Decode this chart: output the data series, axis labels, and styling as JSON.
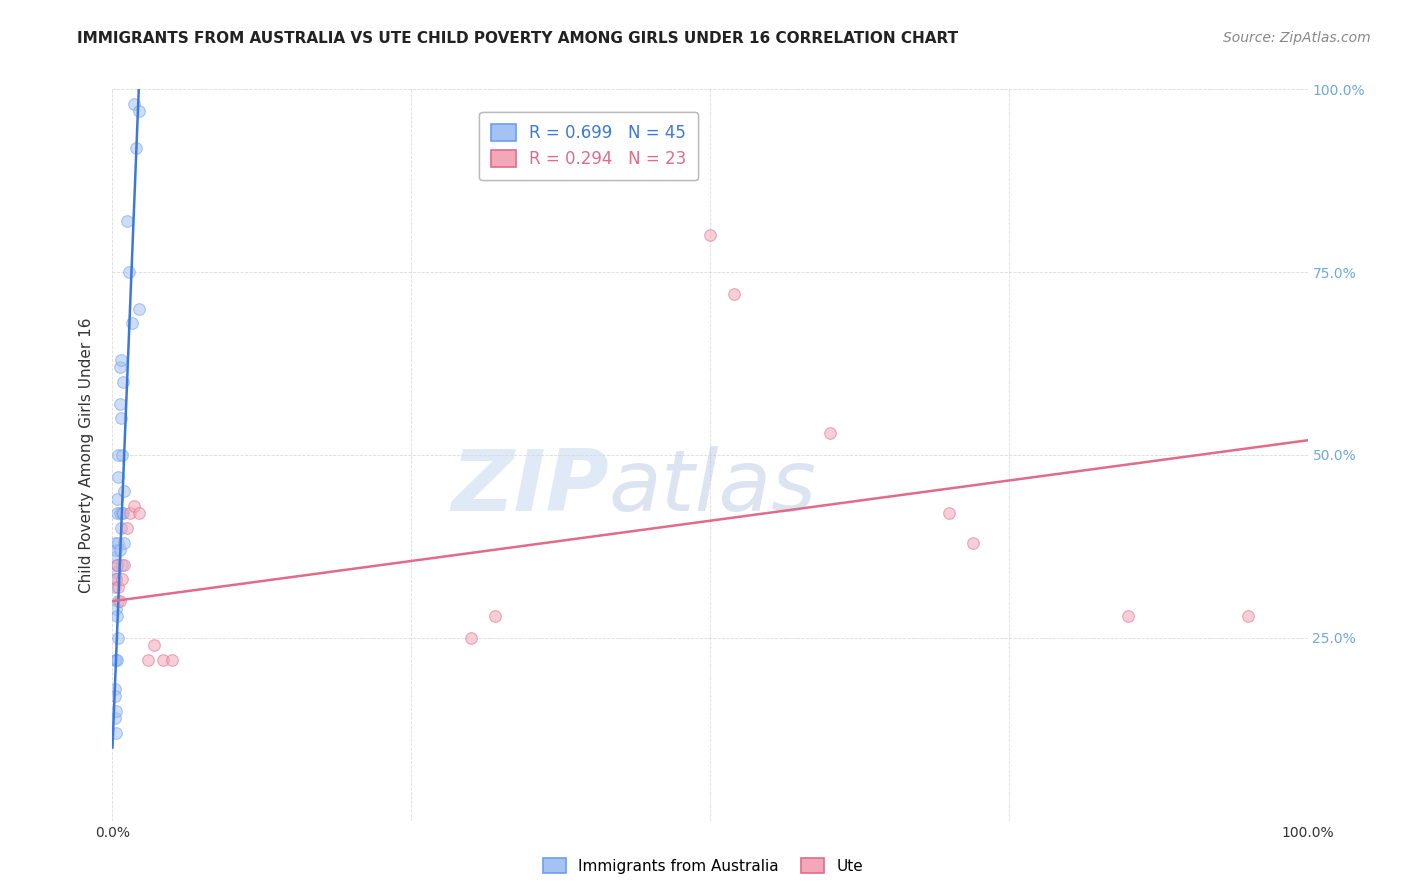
{
  "title": "IMMIGRANTS FROM AUSTRALIA VS UTE CHILD POVERTY AMONG GIRLS UNDER 16 CORRELATION CHART",
  "source": "Source: ZipAtlas.com",
  "ylabel": "Child Poverty Among Girls Under 16",
  "watermark_zip": "ZIP",
  "watermark_atlas": "atlas",
  "blue_R": 0.699,
  "blue_N": 45,
  "pink_R": 0.294,
  "pink_N": 23,
  "blue_color": "#a4c2f4",
  "pink_color": "#f4a7b9",
  "blue_edge_color": "#6d9eeb",
  "pink_edge_color": "#e06c8a",
  "blue_line_color": "#3c78d8",
  "pink_line_color": "#e06c8a",
  "background_color": "#ffffff",
  "grid_color": "#cccccc",
  "right_tick_color": "#6fa8dc",
  "blue_points_x": [
    0.002,
    0.002,
    0.002,
    0.002,
    0.002,
    0.002,
    0.002,
    0.002,
    0.003,
    0.003,
    0.003,
    0.003,
    0.003,
    0.003,
    0.004,
    0.004,
    0.004,
    0.004,
    0.004,
    0.005,
    0.005,
    0.005,
    0.005,
    0.005,
    0.006,
    0.006,
    0.006,
    0.006,
    0.007,
    0.007,
    0.007,
    0.008,
    0.008,
    0.008,
    0.009,
    0.009,
    0.01,
    0.01,
    0.012,
    0.014,
    0.016,
    0.018,
    0.02,
    0.022,
    0.022
  ],
  "blue_points_y": [
    0.38,
    0.36,
    0.34,
    0.32,
    0.22,
    0.18,
    0.17,
    0.14,
    0.37,
    0.33,
    0.29,
    0.22,
    0.15,
    0.12,
    0.44,
    0.42,
    0.35,
    0.28,
    0.22,
    0.5,
    0.47,
    0.38,
    0.3,
    0.25,
    0.62,
    0.57,
    0.42,
    0.37,
    0.63,
    0.55,
    0.4,
    0.5,
    0.42,
    0.35,
    0.6,
    0.42,
    0.45,
    0.38,
    0.82,
    0.75,
    0.68,
    0.98,
    0.92,
    0.97,
    0.7
  ],
  "pink_points_x": [
    0.003,
    0.004,
    0.005,
    0.006,
    0.008,
    0.01,
    0.012,
    0.015,
    0.018,
    0.022,
    0.03,
    0.035,
    0.042,
    0.05,
    0.3,
    0.32,
    0.5,
    0.52,
    0.6,
    0.7,
    0.72,
    0.85,
    0.95
  ],
  "pink_points_y": [
    0.33,
    0.35,
    0.32,
    0.3,
    0.33,
    0.35,
    0.4,
    0.42,
    0.43,
    0.42,
    0.22,
    0.24,
    0.22,
    0.22,
    0.25,
    0.28,
    0.8,
    0.72,
    0.53,
    0.42,
    0.38,
    0.28,
    0.28
  ],
  "blue_line_x": [
    0.0,
    0.022
  ],
  "blue_line_y": [
    0.1,
    1.0
  ],
  "pink_line_x": [
    0.0,
    1.0
  ],
  "pink_line_y": [
    0.3,
    0.52
  ],
  "xlim": [
    0.0,
    1.0
  ],
  "ylim": [
    0.0,
    1.0
  ],
  "xticks": [
    0.0,
    0.25,
    0.5,
    0.75,
    1.0
  ],
  "xticklabels": [
    "0.0%",
    "",
    "",
    "",
    "100.0%"
  ],
  "yticks": [
    0.0,
    0.25,
    0.5,
    0.75,
    1.0
  ],
  "yticklabels_right": [
    "",
    "25.0%",
    "50.0%",
    "75.0%",
    "100.0%"
  ],
  "title_fontsize": 11,
  "source_fontsize": 10,
  "axis_label_fontsize": 11,
  "tick_fontsize": 10,
  "legend_fontsize": 12,
  "marker_size": 70,
  "marker_alpha": 0.55,
  "marker_linewidth": 0.8
}
